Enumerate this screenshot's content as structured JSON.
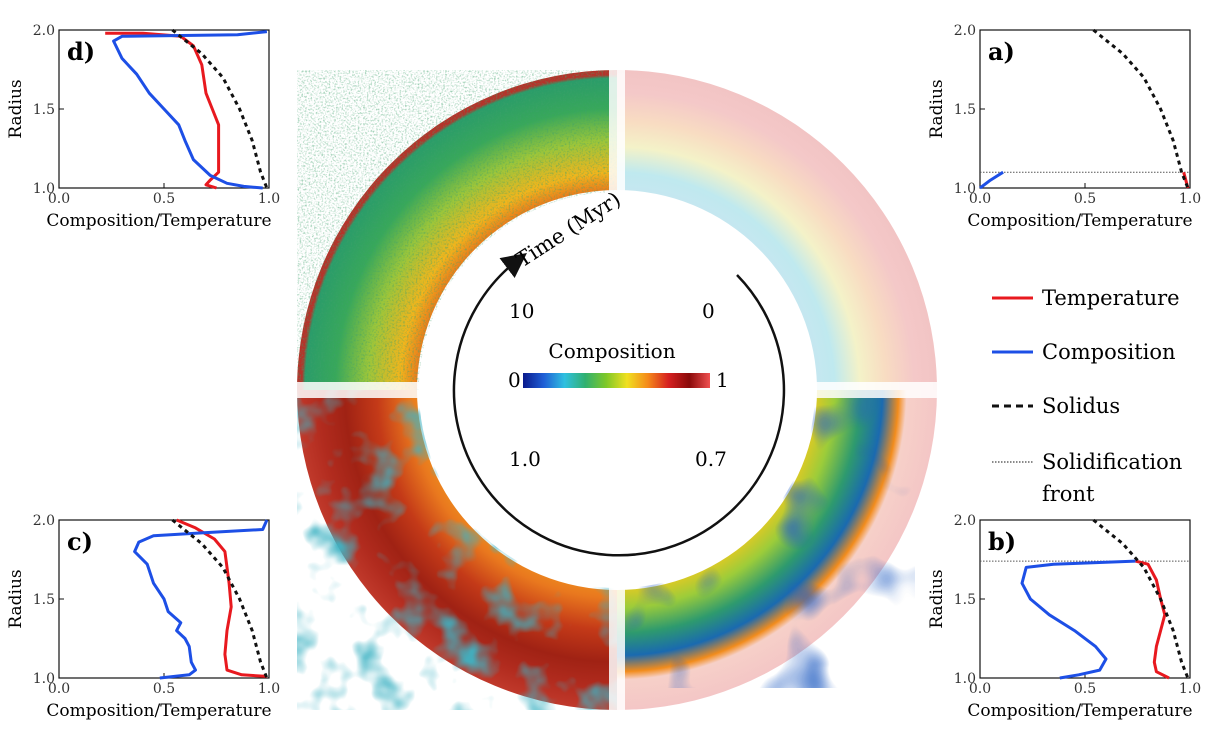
{
  "figure": {
    "colorbar": {
      "title": "Composition",
      "min_label": "0",
      "max_label": "1",
      "stops": [
        "#0a1a8c",
        "#1f5fd6",
        "#2fc0e0",
        "#30b070",
        "#7ec828",
        "#f0e020",
        "#f58a1a",
        "#d62020",
        "#8a0a0a",
        "#f05050"
      ]
    },
    "time_arrow": {
      "label": "Time (Myr)",
      "times": {
        "top_right": "0",
        "top_left": "10",
        "bottom_left": "1.0",
        "bottom_right": "0.7"
      }
    },
    "legend": {
      "items": [
        {
          "label": "Temperature",
          "color": "#e8191f",
          "style": "solid"
        },
        {
          "label": "Composition",
          "color": "#1d4fe6",
          "style": "solid"
        },
        {
          "label": "Solidus",
          "color": "#111111",
          "style": "dashed"
        },
        {
          "label": "Solidification front",
          "lines": [
            "Solidification",
            "front"
          ],
          "color": "#444444",
          "style": "dotted"
        }
      ]
    },
    "colors": {
      "temperature": "#e8191f",
      "composition": "#1d4fe6",
      "solidus": "#111111",
      "front": "#555555"
    }
  },
  "chart_data": [
    {
      "panel": "a)",
      "type": "line",
      "xlabel": "Composition/Temperature",
      "ylabel": "Radius",
      "xlim": [
        0,
        1
      ],
      "ylim": [
        1,
        2
      ],
      "xticks": [
        "0.0",
        "0.5",
        "1.0"
      ],
      "yticks": [
        "1.0",
        "1.5",
        "2.0"
      ],
      "front": 1.1,
      "series": [
        {
          "name": "Temperature",
          "points": [
            [
              0.97,
              1.1
            ],
            [
              0.98,
              1.05
            ],
            [
              0.99,
              1.0
            ]
          ]
        },
        {
          "name": "Composition",
          "points": [
            [
              0.0,
              1.0
            ],
            [
              0.05,
              1.05
            ],
            [
              0.11,
              1.1
            ]
          ]
        },
        {
          "name": "Solidus",
          "points": [
            [
              0.54,
              2.0
            ],
            [
              0.68,
              1.85
            ],
            [
              0.78,
              1.7
            ],
            [
              0.86,
              1.5
            ],
            [
              0.92,
              1.3
            ],
            [
              0.96,
              1.1
            ],
            [
              0.99,
              1.0
            ]
          ]
        }
      ]
    },
    {
      "panel": "b)",
      "type": "line",
      "xlabel": "Composition/Temperature",
      "ylabel": "Radius",
      "xlim": [
        0,
        1
      ],
      "ylim": [
        1,
        2
      ],
      "xticks": [
        "0.0",
        "0.5",
        "1.0"
      ],
      "yticks": [
        "1.0",
        "1.5",
        "2.0"
      ],
      "front": 1.74,
      "series": [
        {
          "name": "Temperature",
          "points": [
            [
              0.74,
              1.74
            ],
            [
              0.8,
              1.72
            ],
            [
              0.84,
              1.62
            ],
            [
              0.86,
              1.5
            ],
            [
              0.88,
              1.4
            ],
            [
              0.86,
              1.3
            ],
            [
              0.84,
              1.2
            ],
            [
              0.83,
              1.1
            ],
            [
              0.84,
              1.04
            ],
            [
              0.9,
              1.0
            ]
          ]
        },
        {
          "name": "Composition",
          "points": [
            [
              0.74,
              1.74
            ],
            [
              0.35,
              1.72
            ],
            [
              0.22,
              1.7
            ],
            [
              0.2,
              1.6
            ],
            [
              0.24,
              1.5
            ],
            [
              0.33,
              1.4
            ],
            [
              0.45,
              1.3
            ],
            [
              0.55,
              1.2
            ],
            [
              0.6,
              1.12
            ],
            [
              0.57,
              1.05
            ],
            [
              0.47,
              1.02
            ],
            [
              0.38,
              1.0
            ]
          ]
        },
        {
          "name": "Solidus",
          "points": [
            [
              0.54,
              2.0
            ],
            [
              0.68,
              1.85
            ],
            [
              0.78,
              1.7
            ],
            [
              0.86,
              1.5
            ],
            [
              0.92,
              1.3
            ],
            [
              0.96,
              1.1
            ],
            [
              0.99,
              1.0
            ]
          ]
        }
      ]
    },
    {
      "panel": "c)",
      "type": "line",
      "xlabel": "Composition/Temperature",
      "ylabel": "Radius",
      "xlim": [
        0,
        1
      ],
      "ylim": [
        1,
        2
      ],
      "xticks": [
        "0.0",
        "0.5",
        "1.0"
      ],
      "yticks": [
        "1.0",
        "1.5",
        "2.0"
      ],
      "series": [
        {
          "name": "Temperature",
          "points": [
            [
              0.56,
              2.0
            ],
            [
              0.65,
              1.95
            ],
            [
              0.74,
              1.88
            ],
            [
              0.79,
              1.8
            ],
            [
              0.81,
              1.6
            ],
            [
              0.82,
              1.45
            ],
            [
              0.8,
              1.3
            ],
            [
              0.79,
              1.15
            ],
            [
              0.8,
              1.05
            ],
            [
              0.87,
              1.02
            ],
            [
              0.99,
              1.01
            ]
          ]
        },
        {
          "name": "Composition",
          "points": [
            [
              0.99,
              2.0
            ],
            [
              0.97,
              1.94
            ],
            [
              0.7,
              1.92
            ],
            [
              0.45,
              1.9
            ],
            [
              0.38,
              1.86
            ],
            [
              0.36,
              1.8
            ],
            [
              0.42,
              1.72
            ],
            [
              0.45,
              1.6
            ],
            [
              0.5,
              1.5
            ],
            [
              0.52,
              1.42
            ],
            [
              0.58,
              1.35
            ],
            [
              0.56,
              1.3
            ],
            [
              0.6,
              1.25
            ],
            [
              0.62,
              1.2
            ],
            [
              0.63,
              1.1
            ],
            [
              0.65,
              1.05
            ],
            [
              0.62,
              1.02
            ],
            [
              0.48,
              1.0
            ]
          ]
        },
        {
          "name": "Solidus",
          "points": [
            [
              0.54,
              2.0
            ],
            [
              0.68,
              1.85
            ],
            [
              0.78,
              1.7
            ],
            [
              0.86,
              1.5
            ],
            [
              0.92,
              1.3
            ],
            [
              0.96,
              1.1
            ],
            [
              0.99,
              1.0
            ]
          ]
        }
      ]
    },
    {
      "panel": "d)",
      "type": "line",
      "xlabel": "Composition/Temperature",
      "ylabel": "Radius",
      "xlim": [
        0,
        1
      ],
      "ylim": [
        1,
        2
      ],
      "xticks": [
        "0.0",
        "0.5",
        "1.0"
      ],
      "yticks": [
        "1.0",
        "1.5",
        "2.0"
      ],
      "series": [
        {
          "name": "Temperature",
          "points": [
            [
              0.22,
              1.98
            ],
            [
              0.4,
              1.98
            ],
            [
              0.58,
              1.96
            ],
            [
              0.64,
              1.9
            ],
            [
              0.68,
              1.78
            ],
            [
              0.7,
              1.6
            ],
            [
              0.73,
              1.5
            ],
            [
              0.76,
              1.4
            ],
            [
              0.76,
              1.2
            ],
            [
              0.76,
              1.1
            ],
            [
              0.72,
              1.05
            ],
            [
              0.7,
              1.02
            ],
            [
              0.75,
              1.0
            ]
          ]
        },
        {
          "name": "Composition",
          "points": [
            [
              0.99,
              1.99
            ],
            [
              0.85,
              1.97
            ],
            [
              0.3,
              1.96
            ],
            [
              0.26,
              1.93
            ],
            [
              0.3,
              1.82
            ],
            [
              0.37,
              1.72
            ],
            [
              0.43,
              1.6
            ],
            [
              0.5,
              1.5
            ],
            [
              0.57,
              1.4
            ],
            [
              0.6,
              1.3
            ],
            [
              0.64,
              1.18
            ],
            [
              0.72,
              1.08
            ],
            [
              0.8,
              1.03
            ],
            [
              0.88,
              1.01
            ],
            [
              0.97,
              1.0
            ]
          ]
        },
        {
          "name": "Solidus",
          "points": [
            [
              0.54,
              2.0
            ],
            [
              0.68,
              1.85
            ],
            [
              0.78,
              1.7
            ],
            [
              0.86,
              1.5
            ],
            [
              0.92,
              1.3
            ],
            [
              0.96,
              1.1
            ],
            [
              0.99,
              1.0
            ]
          ]
        }
      ]
    }
  ]
}
